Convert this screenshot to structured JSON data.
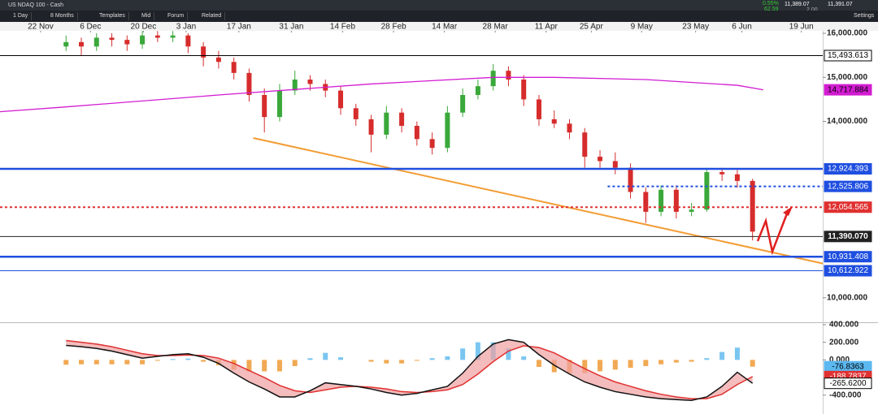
{
  "toolbar": {
    "instrument": "US NDAQ 100 - Cash",
    "interval": "1 Day",
    "range": "8 Months",
    "templates": "Templates",
    "price_mode": "Mid",
    "forum": "Forum",
    "related": "Related",
    "settings": "Settings",
    "change_pct": "0.55%",
    "change": "62.59",
    "bid": "11,389.07",
    "ask": "11,391.07",
    "spread": "2.00"
  },
  "chart_data": {
    "type": "candlestick",
    "xlim": [
      -4.33,
      49.6
    ],
    "xticks": [
      {
        "value": -1.67,
        "label": "22 Nov"
      },
      {
        "value": 1.6,
        "label": "6 Dec"
      },
      {
        "value": 5.07,
        "label": "20 Dec"
      },
      {
        "value": 7.87,
        "label": "3 Jan"
      },
      {
        "value": 11.33,
        "label": "17 Jan"
      },
      {
        "value": 14.77,
        "label": "31 Jan"
      },
      {
        "value": 18.13,
        "label": "14 Feb"
      },
      {
        "value": 21.47,
        "label": "28 Feb"
      },
      {
        "value": 24.8,
        "label": "14 Mar"
      },
      {
        "value": 28.13,
        "label": "28 Mar"
      },
      {
        "value": 31.47,
        "label": "11 Apr"
      },
      {
        "value": 34.43,
        "label": "25 Apr"
      },
      {
        "value": 37.73,
        "label": "9 May"
      },
      {
        "value": 41.27,
        "label": "23 May"
      },
      {
        "value": 44.3,
        "label": "6 Jun"
      },
      {
        "value": 48.2,
        "label": "19 Jun"
      }
    ],
    "ylim": [
      9444,
      16055
    ],
    "yticks": [
      {
        "value": 10000,
        "label": "10,000.000"
      },
      {
        "value": 14000,
        "label": "14,000.000"
      },
      {
        "value": 15000,
        "label": "15,000.000"
      },
      {
        "value": 16000,
        "label": "16,000.000"
      }
    ],
    "up_color": "#3aa83a",
    "down_color": "#d62c2c",
    "ohlc": [
      [
        15700,
        15950,
        15600,
        15800
      ],
      [
        15800,
        15900,
        15500,
        15700
      ],
      [
        15700,
        16000,
        15600,
        15900
      ],
      [
        15900,
        16000,
        15700,
        15850
      ],
      [
        15850,
        15950,
        15600,
        15750
      ],
      [
        15750,
        16050,
        15650,
        15950
      ],
      [
        15950,
        16050,
        15800,
        15900
      ],
      [
        15900,
        16050,
        15800,
        15950
      ],
      [
        15950,
        16000,
        15550,
        15700
      ],
      [
        15700,
        15800,
        15250,
        15450
      ],
      [
        15450,
        15600,
        15200,
        15350
      ],
      [
        15350,
        15450,
        14950,
        15100
      ],
      [
        15100,
        15200,
        14450,
        14600
      ],
      [
        14600,
        14750,
        13750,
        14100
      ],
      [
        14100,
        14850,
        14000,
        14700
      ],
      [
        14700,
        15150,
        14600,
        14950
      ],
      [
        14950,
        15050,
        14700,
        14850
      ],
      [
        14850,
        14950,
        14550,
        14700
      ],
      [
        14700,
        14800,
        14150,
        14300
      ],
      [
        14300,
        14400,
        13900,
        14050
      ],
      [
        14050,
        14150,
        13300,
        13700
      ],
      [
        13700,
        14350,
        13600,
        14200
      ],
      [
        14200,
        14300,
        13750,
        13900
      ],
      [
        13900,
        14000,
        13450,
        13600
      ],
      [
        13600,
        13750,
        13250,
        13400
      ],
      [
        13400,
        14350,
        13300,
        14200
      ],
      [
        14200,
        14750,
        14100,
        14600
      ],
      [
        14600,
        14950,
        14500,
        14800
      ],
      [
        14800,
        15300,
        14700,
        15150
      ],
      [
        15150,
        15250,
        14800,
        14950
      ],
      [
        14950,
        15050,
        14350,
        14500
      ],
      [
        14500,
        14600,
        13900,
        14050
      ],
      [
        14050,
        14250,
        13850,
        13950
      ],
      [
        13950,
        14050,
        13600,
        13750
      ],
      [
        13750,
        13850,
        12950,
        13200
      ],
      [
        13200,
        13350,
        12950,
        13100
      ],
      [
        13100,
        13300,
        12800,
        12950
      ],
      [
        12950,
        13050,
        12250,
        12400
      ],
      [
        12400,
        12500,
        11700,
        11950
      ],
      [
        11950,
        12550,
        11850,
        12450
      ],
      [
        12450,
        12550,
        11800,
        11950
      ],
      [
        11950,
        12150,
        11850,
        12000
      ],
      [
        12000,
        12950,
        11950,
        12850
      ],
      [
        12850,
        12950,
        12650,
        12800
      ],
      [
        12800,
        12900,
        12500,
        12650
      ],
      [
        12650,
        12700,
        11300,
        11500
      ]
    ],
    "ma": {
      "color": "#d21cd2",
      "x": [
        -4.33,
        0,
        10,
        20,
        28,
        32,
        38,
        44,
        45.7
      ],
      "values": [
        14220,
        14330,
        14600,
        14850,
        15000,
        15000,
        14950,
        14820,
        14717.884
      ]
    },
    "trendline": {
      "color": "#f39c34",
      "x": [
        12.27,
        49.7
      ],
      "values": [
        13624,
        10770
      ]
    },
    "levels": [
      {
        "value": 15493.613,
        "label": "15,493.613",
        "color": "#000000",
        "style": "solid",
        "box": "outline"
      },
      {
        "value": 14717.884,
        "label": "14,717.884",
        "color": "#d21cd2",
        "style": "none",
        "box": "filled"
      },
      {
        "value": 12924.393,
        "label": "12,924.393",
        "color": "#1f4fe0",
        "style": "thick",
        "box": "filled"
      },
      {
        "value": 12525.806,
        "label": "12,525.806",
        "color": "#1f4fe0",
        "style": "dotted",
        "box": "filled",
        "from": 35.5
      },
      {
        "value": 12054.565,
        "label": "12,054.565",
        "color": "#e03030",
        "style": "dotted",
        "box": "filled"
      },
      {
        "value": 11390.07,
        "label": "11,390.070",
        "color": "#222222",
        "style": "solid",
        "box": "filled"
      },
      {
        "value": 10931.408,
        "label": "10,931.408",
        "color": "#1f4fe0",
        "style": "thick",
        "box": "filled"
      },
      {
        "value": 10612.922,
        "label": "10,612.922",
        "color": "#1f4fe0",
        "style": "solid",
        "box": "filled"
      }
    ],
    "macd": {
      "ylim": [
        -614,
        418
      ],
      "yticks": [
        {
          "value": 400,
          "label": "400.000"
        },
        {
          "value": 200,
          "label": "200.000"
        },
        {
          "value": 0,
          "label": "0.000"
        },
        {
          "value": -400,
          "label": "-400.000"
        }
      ],
      "macd": [
        165,
        150,
        130,
        100,
        60,
        20,
        40,
        60,
        70,
        30,
        -40,
        -150,
        -250,
        -330,
        -420,
        -420,
        -350,
        -260,
        -280,
        -300,
        -330,
        -370,
        -400,
        -380,
        -340,
        -300,
        -150,
        40,
        180,
        230,
        200,
        60,
        -60,
        -160,
        -250,
        -310,
        -360,
        -390,
        -420,
        -440,
        -450,
        -460,
        -420,
        -300,
        -140,
        -265.62
      ],
      "signal": [
        220,
        200,
        180,
        150,
        110,
        70,
        50,
        50,
        55,
        50,
        20,
        -40,
        -120,
        -200,
        -290,
        -350,
        -370,
        -340,
        -310,
        -300,
        -310,
        -330,
        -360,
        -370,
        -360,
        -340,
        -280,
        -160,
        -20,
        100,
        160,
        140,
        80,
        -10,
        -100,
        -180,
        -250,
        -300,
        -350,
        -390,
        -420,
        -440,
        -440,
        -390,
        -280,
        -188.7837
      ],
      "hist": [
        -55,
        -50,
        -50,
        -50,
        -50,
        -50,
        -10,
        10,
        15,
        -20,
        -60,
        -110,
        -130,
        -130,
        -130,
        -70,
        20,
        80,
        30,
        0,
        -20,
        -40,
        -40,
        -10,
        20,
        40,
        130,
        200,
        200,
        130,
        40,
        -80,
        -140,
        -150,
        -150,
        -130,
        -110,
        -90,
        -70,
        -50,
        -30,
        -20,
        20,
        90,
        140,
        -76.8363
      ],
      "labels": [
        {
          "value": -76.8363,
          "label": "-76.8363",
          "color": "#5bb8f0"
        },
        {
          "value": -188.7837,
          "label": "-188.7837",
          "color": "#e03030"
        },
        {
          "value": -265.62,
          "label": "-265.6200",
          "color": "#ffffff"
        }
      ]
    }
  }
}
